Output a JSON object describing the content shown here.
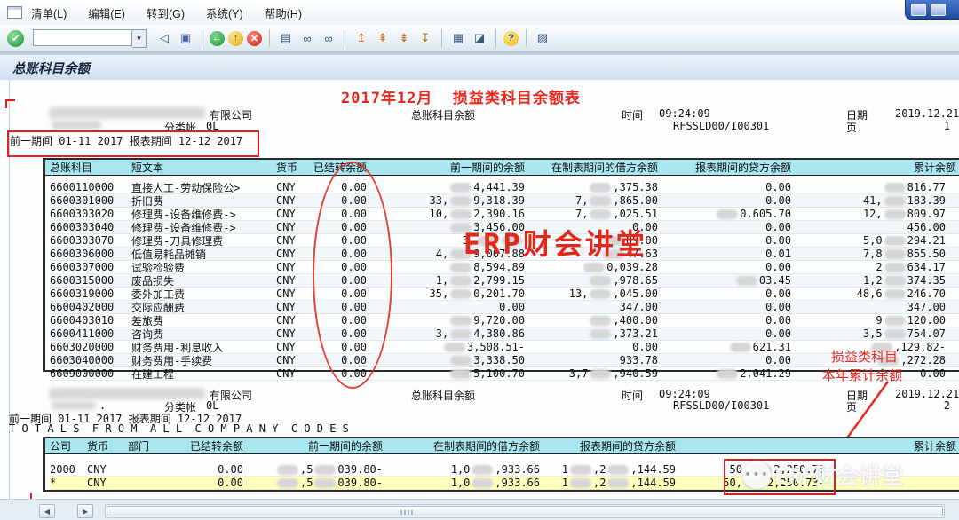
{
  "menu": {
    "items": [
      "清单(L)",
      "编辑(E)",
      "转到(G)",
      "系统(Y)",
      "帮助(H)"
    ]
  },
  "toolbar": {
    "command_value": "",
    "icons": [
      {
        "name": "left-triangle-icon",
        "glyph": "◁",
        "cls": ""
      },
      {
        "name": "save-icon",
        "glyph": "▣",
        "cls": "sv"
      },
      {
        "sep": true
      },
      {
        "name": "back-icon",
        "glyph": "←",
        "cls": "cir grn"
      },
      {
        "name": "exit-icon",
        "glyph": "↑",
        "cls": "cir yel"
      },
      {
        "name": "cancel-icon",
        "glyph": "✕",
        "cls": "cir red"
      },
      {
        "sep": true
      },
      {
        "name": "print-icon",
        "glyph": "▤",
        "cls": ""
      },
      {
        "name": "find-icon",
        "glyph": "∞",
        "cls": ""
      },
      {
        "name": "find-next-icon",
        "glyph": "∞",
        "cls": ""
      },
      {
        "sep": true
      },
      {
        "name": "first-page-icon",
        "glyph": "↥",
        "cls": "pg"
      },
      {
        "name": "page-up-icon",
        "glyph": "⇞",
        "cls": "pg"
      },
      {
        "name": "page-down-icon",
        "glyph": "⇟",
        "cls": "pg"
      },
      {
        "name": "last-page-icon",
        "glyph": "↧",
        "cls": "pg"
      },
      {
        "sep": true
      },
      {
        "name": "create-session-icon",
        "glyph": "▦",
        "cls": ""
      },
      {
        "name": "shortcut-icon",
        "glyph": "◪",
        "cls": ""
      },
      {
        "sep": true
      },
      {
        "name": "help-icon",
        "glyph": "?",
        "cls": "cir hlp"
      },
      {
        "sep": true
      },
      {
        "name": "customize-icon",
        "glyph": "▨",
        "cls": ""
      }
    ]
  },
  "title": "总账科目余额",
  "annotations": {
    "top_note": "2017年12月  损益类科目余额表",
    "center_watermark": "ERP财会讲堂",
    "pl_note": "损益类科目",
    "ytd_note": "本年累计余额",
    "corner_watermark": "ERP财会讲堂",
    "wechat_dots": "•••",
    "red_color": "#e8281c"
  },
  "report1": {
    "company_suffix": "有限公司",
    "ledger_label": "分类帐",
    "ledger_value": "0L",
    "center_title": "总账科目余额",
    "time_label": "时间",
    "time_value": "09:24:09",
    "program": "RFSSLD00/I00301",
    "date_label": "日期",
    "date_value": "2019.12.21",
    "page_label": "页",
    "page_value": "1",
    "period_text": "前一期间 01-11 2017 报表期间 12-12 2017",
    "columns": [
      "总账科目",
      "短文本",
      "货币",
      "已结转余额",
      "前一期间的余额",
      "在制表期间的借方余额",
      "报表期间的贷方余额",
      "累计余额"
    ],
    "rows": [
      [
        "6600110000",
        "直接人工-劳动保险公>",
        "CNY",
        "0.00",
        "▒4,441.39",
        "▒,375.38",
        "0.00",
        "▒816.77"
      ],
      [
        "6600301000",
        "折旧费",
        "CNY",
        "0.00",
        "33,▒9,318.39",
        "7,▒,865.00",
        "0.00",
        "41,▒183.39"
      ],
      [
        "6600303020",
        "修理费-设备维修费->",
        "CNY",
        "0.00",
        "10,▒2,390.16",
        "7,▒,025.51",
        "▒0,605.70",
        "12,▒809.97"
      ],
      [
        "6600303040",
        "修理费-设备维修费->",
        "CNY",
        "0.00",
        "▒3,456.00",
        "0.00",
        "0.00",
        "456.00"
      ],
      [
        "6600303070",
        "修理费-刀具修理费",
        "CNY",
        "0.00",
        "3,▒▒",
        "▒09.00",
        "0.00",
        "5,0▒294.21"
      ],
      [
        "6600306000",
        "低值易耗品摊销",
        "CNY",
        "0.00",
        "4,▒9,007.88",
        "▒47.63",
        "0.01",
        "7,8▒855.50"
      ],
      [
        "6600307000",
        "试验检验费",
        "CNY",
        "0.00",
        "▒8,594.89",
        "▒0,039.28",
        "0.00",
        "2▒634.17"
      ],
      [
        "6600315000",
        "废品损失",
        "CNY",
        "0.00",
        "1,▒2,799.15",
        "▒,978.65",
        "▒03.45",
        "1,2▒374.35"
      ],
      [
        "6600319000",
        "委外加工费",
        "CNY",
        "0.00",
        "35,▒0,201.70",
        "13,▒,045.00",
        "0.00",
        "48,6▒246.70"
      ],
      [
        "6600402000",
        "交际应酬费",
        "CNY",
        "0.00",
        "0.00",
        "347.00",
        "0.00",
        "347.00"
      ],
      [
        "6600403010",
        "差旅费",
        "CNY",
        "0.00",
        "▒9,720.00",
        "▒,400.00",
        "0.00",
        "9▒120.00"
      ],
      [
        "6600411000",
        "咨询费",
        "CNY",
        "0.00",
        "3,▒4,380.86",
        "▒,373.21",
        "0.00",
        "3,5▒754.07"
      ],
      [
        "6603020000",
        "财务费用-利息收入",
        "CNY",
        "0.00",
        "▒3,508.51-",
        "0.00",
        "▒621.31",
        "▒,129.82-"
      ],
      [
        "6603040000",
        "财务费用-手续费",
        "CNY",
        "0.00",
        "▒3,338.50",
        "933.78",
        "0.00",
        "▒,272.28"
      ],
      [
        "6609000000",
        "在建工程",
        "CNY",
        "0.00",
        "▒5,100.70",
        "3,7▒,940.59",
        "▒2,041.29",
        "0.00"
      ]
    ]
  },
  "report2": {
    "company_suffix": "有限公司",
    "dot": ".",
    "ledger_label": "分类帐",
    "ledger_value": "0L",
    "center_title": "总账科目余额",
    "time_label": "时间",
    "time_value": "09:24:09",
    "program": "RFSSLD00/I00301",
    "date_label": "日期",
    "date_value": "2019.12.21",
    "page_label": "页",
    "page_value": "2",
    "period_text": "前一期间 01-11 2017 报表期间 12-12 2017",
    "totals_text": "T O T A L S  F R O M  A L L  C O M P A N Y  C O D E S",
    "columns": [
      "公司",
      "货币",
      "部门",
      "已结转余额",
      "前一期间的余额",
      "在制表期间的借方余额",
      "报表期间的贷方余额",
      "累计余额"
    ],
    "rows": [
      [
        "2000",
        "CNY",
        "",
        "0.00",
        "▒,5▒039.80-",
        "1,0▒,933.66",
        "1▒,2▒,144.59",
        "50,▒2,250.73"
      ],
      [
        "*",
        "CNY",
        "",
        "0.00",
        "▒,5▒039.80-",
        "1,0▒,933.66",
        "1▒,2▒,144.59",
        "50,▒2,250.73-"
      ]
    ],
    "highlight_rows": [
      1
    ]
  },
  "scrollbar": {
    "left_arrow": "◀",
    "right_arrow": "▶"
  }
}
